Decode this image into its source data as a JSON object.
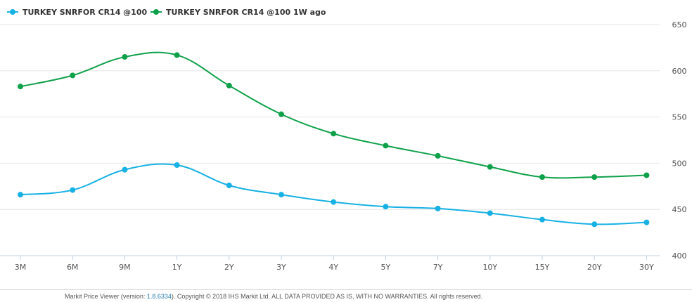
{
  "chart_data": {
    "type": "line",
    "categories": [
      "3M",
      "6M",
      "9M",
      "1Y",
      "2Y",
      "3Y",
      "4Y",
      "5Y",
      "7Y",
      "10Y",
      "15Y",
      "20Y",
      "30Y"
    ],
    "series": [
      {
        "name": "TURKEY SNRFOR CR14 @100",
        "color": "#17b1e4",
        "values": [
          466,
          471,
          493,
          498,
          476,
          466,
          458,
          453,
          451,
          446,
          439,
          434,
          436
        ]
      },
      {
        "name": "TURKEY SNRFOR CR14 @100 1W ago",
        "color": "#0fa14a",
        "values": [
          583,
          595,
          615,
          617,
          584,
          553,
          532,
          519,
          508,
          496,
          485,
          485,
          487
        ]
      }
    ],
    "ylim": [
      400,
      650
    ],
    "yticks": [
      400,
      450,
      500,
      550,
      600,
      650
    ],
    "grid": true,
    "legend_position": "top-left",
    "y_axis_position": "right"
  },
  "footer": {
    "prefix": "Markit Price Viewer (version: ",
    "version": "1.8.6334",
    "suffix": ").  Copyright © 2018 IHS Markit Ltd. ALL DATA PROVIDED AS IS, WITH NO WARRANTIES. All rights reserved."
  }
}
